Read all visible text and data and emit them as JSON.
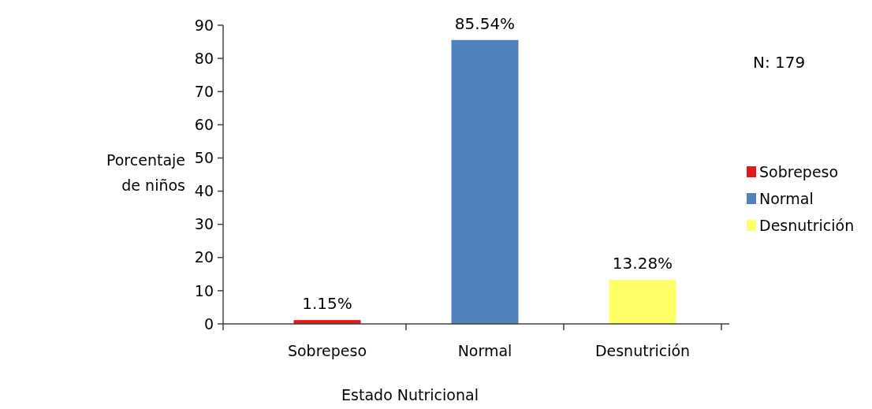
{
  "chart_data": {
    "type": "bar",
    "xlabel": "Estado Nutricional",
    "ylabel": "Porcentaje de niños",
    "categories": [
      "Sobrepeso",
      "Normal",
      "Desnutrición"
    ],
    "series": [
      {
        "name": "Sobrepeso",
        "color": "#e0191b",
        "values": [
          1.15,
          null,
          null
        ],
        "value_labels": [
          "1.15%",
          null,
          null
        ]
      },
      {
        "name": "Normal",
        "color": "#4f81bd",
        "values": [
          null,
          85.54,
          null
        ],
        "value_labels": [
          null,
          "85.54%",
          null
        ]
      },
      {
        "name": "Desnutrición",
        "color": "#ffff66",
        "values": [
          null,
          null,
          13.28
        ],
        "value_labels": [
          null,
          null,
          "13.28%"
        ]
      }
    ],
    "ylim": [
      0,
      90
    ],
    "yticks": [
      0,
      10,
      20,
      30,
      40,
      50,
      60,
      70,
      80,
      90
    ],
    "legend": "right",
    "annotations": [
      "N: 179"
    ]
  }
}
